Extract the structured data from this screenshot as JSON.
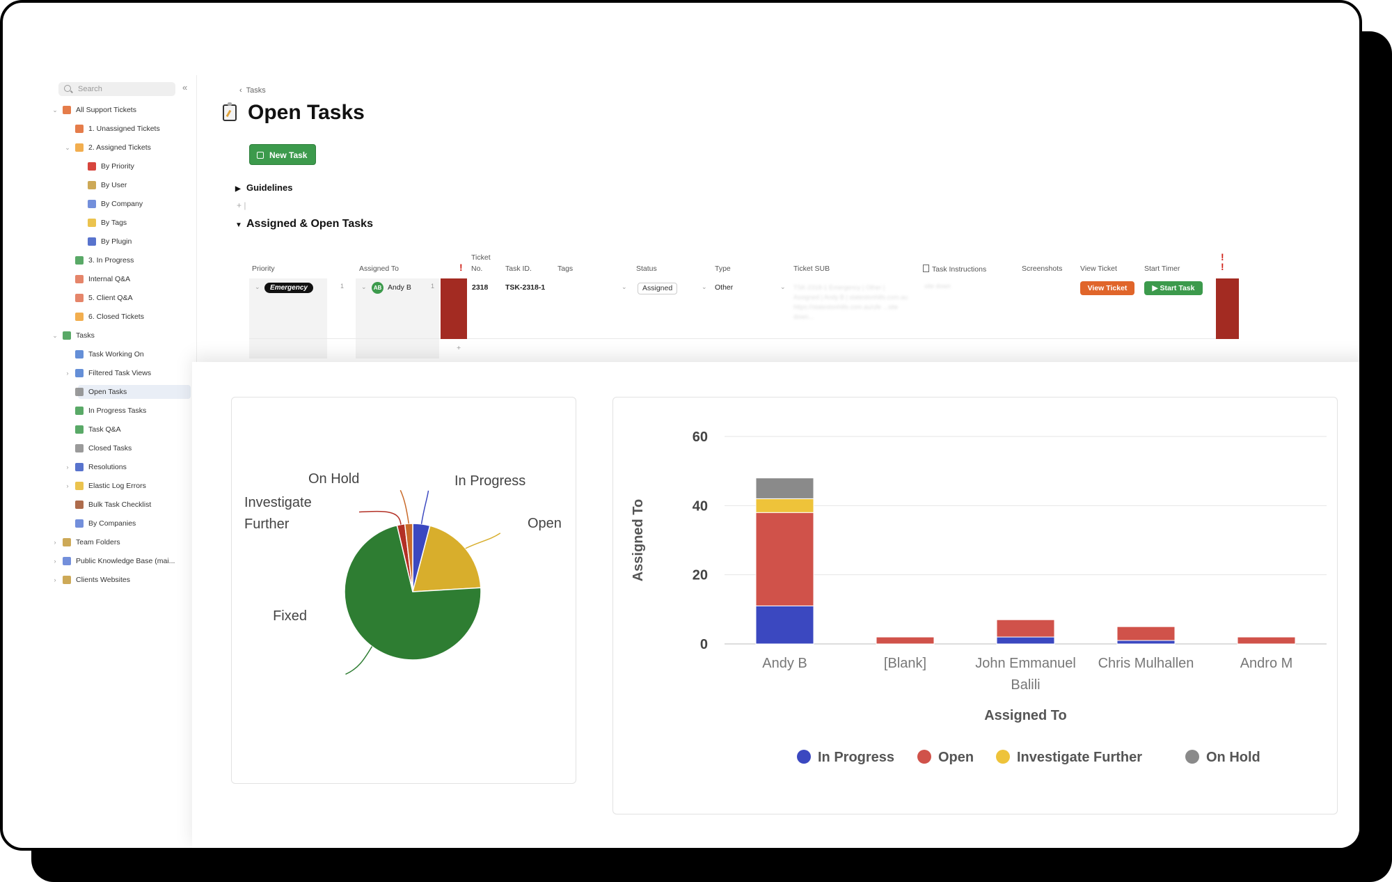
{
  "sidebar": {
    "search_placeholder": "Search",
    "collapse_glyph": "«",
    "items": [
      {
        "label": "All Support Tickets",
        "level": 0,
        "caret": "v",
        "icon": "support-icon",
        "color": "#e0652a"
      },
      {
        "label": "1. Unassigned Tickets",
        "level": 1,
        "caret": "",
        "icon": "warning-icon",
        "color": "#e0652a"
      },
      {
        "label": "2. Assigned Tickets",
        "level": 1,
        "caret": "v",
        "icon": "tickets-icon",
        "color": "#f0a030"
      },
      {
        "label": "By Priority",
        "level": 2,
        "caret": "",
        "icon": "priority-icon",
        "color": "#d0241b"
      },
      {
        "label": "By User",
        "level": 2,
        "caret": "",
        "icon": "user-icon",
        "color": "#c49a3a"
      },
      {
        "label": "By Company",
        "level": 2,
        "caret": "",
        "icon": "company-icon",
        "color": "#5b7bd5"
      },
      {
        "label": "By Tags",
        "level": 2,
        "caret": "",
        "icon": "tag-icon",
        "color": "#e8b92f"
      },
      {
        "label": "By Plugin",
        "level": 2,
        "caret": "",
        "icon": "plugin-icon",
        "color": "#3b5bc4"
      },
      {
        "label": "3. In Progress",
        "level": 1,
        "caret": "",
        "icon": "progress-icon",
        "color": "#3c9a4c"
      },
      {
        "label": "Internal Q&A",
        "level": 1,
        "caret": "",
        "icon": "pulse-icon",
        "color": "#e07050"
      },
      {
        "label": "5. Client Q&A",
        "level": 1,
        "caret": "",
        "icon": "pulse-icon",
        "color": "#e07050"
      },
      {
        "label": "6. Closed Tickets",
        "level": 1,
        "caret": "",
        "icon": "closed-tickets-icon",
        "color": "#f0a030"
      },
      {
        "label": "Tasks",
        "level": 0,
        "caret": "v",
        "icon": "tasks-icon",
        "color": "#3c9a4c"
      },
      {
        "label": "Task Working On",
        "level": 1,
        "caret": "",
        "icon": "clock-icon",
        "color": "#4a7bd0"
      },
      {
        "label": "Filtered Task Views",
        "level": 1,
        "caret": ">",
        "icon": "filter-icon",
        "color": "#4a7bd0"
      },
      {
        "label": "Open Tasks",
        "level": 1,
        "caret": "",
        "icon": "clipboard-icon",
        "color": "#888",
        "active": true
      },
      {
        "label": "In Progress Tasks",
        "level": 1,
        "caret": "",
        "icon": "check-circle-icon",
        "color": "#3c9a4c"
      },
      {
        "label": "Task Q&A",
        "level": 1,
        "caret": "",
        "icon": "people-icon",
        "color": "#3c9a4c"
      },
      {
        "label": "Closed Tasks",
        "level": 1,
        "caret": "",
        "icon": "closed-box-icon",
        "color": "#888"
      },
      {
        "label": "Resolutions",
        "level": 1,
        "caret": ">",
        "icon": "resolutions-icon",
        "color": "#3b5bc4"
      },
      {
        "label": "Elastic Log Errors",
        "level": 1,
        "caret": ">",
        "icon": "alert-icon",
        "color": "#e8b92f"
      },
      {
        "label": "Bulk Task Checklist",
        "level": 1,
        "caret": "",
        "icon": "checklist-icon",
        "color": "#a0522d"
      },
      {
        "label": "By Companies",
        "level": 1,
        "caret": "",
        "icon": "company-icon",
        "color": "#5b7bd5"
      },
      {
        "label": "Team Folders",
        "level": 0,
        "caret": ">",
        "icon": "team-icon",
        "color": "#c49a3a"
      },
      {
        "label": "Public Knowledge Base (mai...",
        "level": 0,
        "caret": ">",
        "icon": "knowledge-icon",
        "color": "#5b7bd5"
      },
      {
        "label": "Clients Websites",
        "level": 0,
        "caret": ">",
        "icon": "clients-icon",
        "color": "#c49a3a"
      }
    ]
  },
  "main": {
    "breadcrumb": "Tasks",
    "breadcrumb_glyph": "‹",
    "title": "Open Tasks",
    "new_task_label": "New Task",
    "guidelines_label": "Guidelines",
    "guidelines_arrow": "▶",
    "add_glyph": "+",
    "section_label": "Assigned & Open Tasks",
    "section_arrow": "▼"
  },
  "table": {
    "headers": {
      "priority": "Priority",
      "assigned_to": "Assigned To",
      "ticket_no_1": "Ticket",
      "ticket_no_2": "No.",
      "task_id": "Task ID.",
      "tags": "Tags",
      "status": "Status",
      "type": "Type",
      "ticket_sub": "Ticket SUB",
      "task_instructions": "Task Instructions",
      "screenshots": "Screenshots",
      "view_ticket": "View Ticket",
      "start_timer": "Start Timer"
    },
    "exclamation": "!",
    "row": {
      "priority": "Emergency",
      "priority_count": "1",
      "assignee_initials": "AB",
      "assignee": "Andy B",
      "assignee_count": "1",
      "ticket_no": "2318",
      "task_id": "TSK-2318-1",
      "status": "Assigned",
      "type": "Other",
      "ticket_sub_blur": "TSK-2318-1 Emergency | Other | Assigned | Andy B | statestonhills.com.au https://statestonhills.com.au/ufe ...site down...",
      "task_instructions_blur": "site down",
      "view_ticket_label": "View Ticket",
      "start_task_label": "▶ Start Task"
    },
    "add_row_glyph": "+"
  },
  "chart_data": [
    {
      "type": "pie",
      "title": "",
      "slices": [
        {
          "label": "In Progress",
          "value": 11,
          "color": "#3b48c0"
        },
        {
          "label": "Open",
          "value": 54,
          "color": "#d8ae2c"
        },
        {
          "label": "Fixed",
          "value": 195,
          "color": "#2e7d32"
        },
        {
          "label": "Investigate Further",
          "value": 5,
          "color": "#b33025"
        },
        {
          "label": "On Hold",
          "value": 5,
          "color": "#c96a2a"
        }
      ]
    },
    {
      "type": "bar",
      "stacked": true,
      "title": "",
      "xlabel": "Assigned To",
      "ylabel": "Assigned To",
      "ylim": [
        0,
        60
      ],
      "yticks": [
        0,
        20,
        40,
        60
      ],
      "grid": true,
      "legend_position": "bottom",
      "categories": [
        "Andy B",
        "[Blank]",
        "John Emmanuel Balili",
        "Chris Mulhallen",
        "Andro M"
      ],
      "category_lines": [
        [
          "Andy B"
        ],
        [
          "[Blank]"
        ],
        [
          "John Emmanuel",
          "Balili"
        ],
        [
          "Chris Mulhallen"
        ],
        [
          "Andro M"
        ]
      ],
      "series": [
        {
          "name": "In Progress",
          "color": "#3b48c0",
          "values": [
            11,
            0,
            2,
            1,
            0
          ]
        },
        {
          "name": "Open",
          "color": "#d0524a",
          "values": [
            27,
            2,
            5,
            4,
            2
          ]
        },
        {
          "name": "Investigate Further",
          "color": "#eec33a",
          "values": [
            4,
            0,
            0,
            0,
            0
          ]
        },
        {
          "name": "On Hold",
          "color": "#8a8a8a",
          "values": [
            6,
            0,
            0,
            0,
            0
          ]
        }
      ]
    }
  ]
}
